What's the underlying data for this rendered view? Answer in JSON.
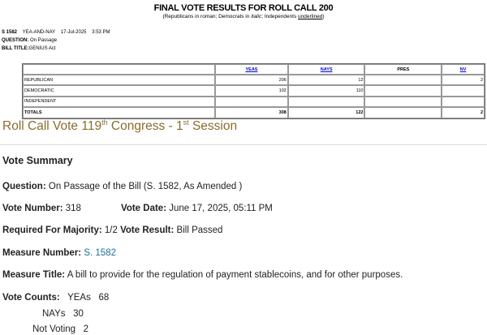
{
  "header": {
    "title": "FINAL VOTE RESULTS FOR ROLL CALL 200",
    "subtitle_prefix": "(Republicans in roman; Democrats in ",
    "italic": "italic",
    "mid": "; Independents ",
    "underlined": "underlined",
    "suffix": ")"
  },
  "meta": {
    "bill": "S 1582",
    "type": "YEA-AND-NAY",
    "date": "17-Jul-2025",
    "time": "3:53 PM",
    "question_label": "QUESTION:",
    "question": "On Passage",
    "bill_title_label": "BILL TITLE:",
    "bill_title": "GENIUS Act"
  },
  "table": {
    "headers": [
      "",
      "YEAS",
      "NAYS",
      "PRES",
      "NV"
    ],
    "rows": [
      [
        "REPUBLICAN",
        "206",
        "12",
        "",
        "2"
      ],
      [
        "DEMOCRATIC",
        "102",
        "110",
        "",
        ""
      ],
      [
        "INDEPENDENT",
        "",
        "",
        "",
        ""
      ],
      [
        "TOTALS",
        "308",
        "122",
        "",
        "2"
      ]
    ]
  },
  "rollcall": {
    "prefix": "Roll Call Vote 119",
    "sup1": "th",
    "mid": " Congress - 1",
    "sup2": "st",
    "suffix": " Session"
  },
  "summary": {
    "heading": "Vote Summary",
    "question_label": "Question:",
    "question": "On Passage of the Bill (S. 1582, As Amended )",
    "vote_number_label": "Vote Number:",
    "vote_number": "318",
    "vote_date_label": "Vote Date:",
    "vote_date": "June 17, 2025, 05:11 PM",
    "majority_label": "Required For Majority:",
    "majority": "1/2",
    "result_label": "Vote Result:",
    "result": "Bill Passed",
    "measure_number_label": "Measure Number:",
    "measure_number": "S. 1582",
    "measure_title_label": "Measure Title:",
    "measure_title": "A bill to provide for the regulation of payment stablecoins, and for other purposes.",
    "counts_label": "Vote Counts:",
    "yeas_label": "YEAs",
    "yeas": "68",
    "nays_label": "NAYs",
    "nays": "30",
    "nv_label": "Not Voting",
    "nv": "2"
  },
  "colors": {
    "heading": "#8a6c2b",
    "link": "#1f6f9a",
    "table_link": "#0000cc"
  }
}
